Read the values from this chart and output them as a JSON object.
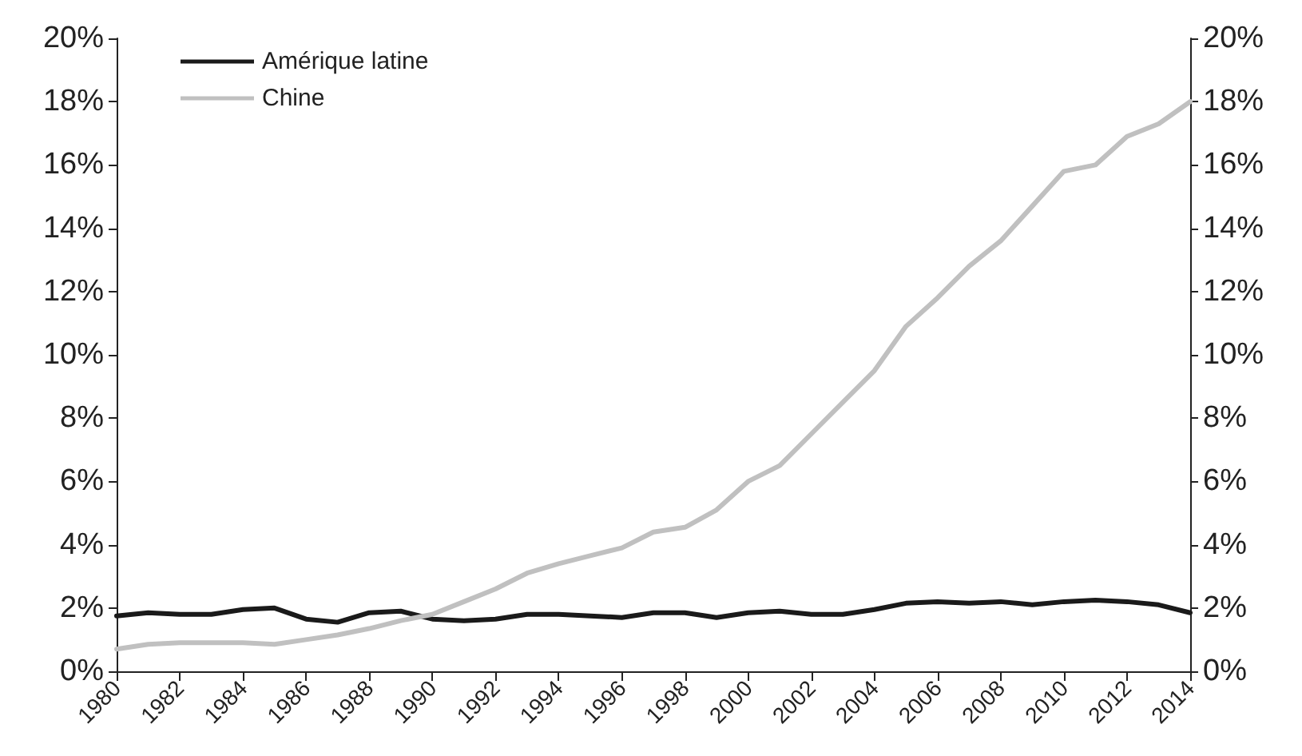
{
  "chart_data": {
    "type": "line",
    "x": [
      1980,
      1981,
      1982,
      1983,
      1984,
      1985,
      1986,
      1987,
      1988,
      1989,
      1990,
      1991,
      1992,
      1993,
      1994,
      1995,
      1996,
      1997,
      1998,
      1999,
      2000,
      2001,
      2002,
      2003,
      2004,
      2005,
      2006,
      2007,
      2008,
      2009,
      2010,
      2011,
      2012,
      2013,
      2014
    ],
    "series": [
      {
        "name": "Amérique latine",
        "color": "#1a1a1a",
        "values": [
          1.75,
          1.85,
          1.8,
          1.8,
          1.95,
          2.0,
          1.65,
          1.55,
          1.85,
          1.9,
          1.65,
          1.6,
          1.65,
          1.8,
          1.8,
          1.75,
          1.7,
          1.85,
          1.85,
          1.7,
          1.85,
          1.9,
          1.8,
          1.8,
          1.95,
          2.15,
          2.2,
          2.15,
          2.2,
          2.1,
          2.2,
          2.25,
          2.2,
          2.1,
          1.85
        ]
      },
      {
        "name": "Chine",
        "color": "#c0c0c0",
        "values": [
          0.7,
          0.85,
          0.9,
          0.9,
          0.9,
          0.85,
          1.0,
          1.15,
          1.35,
          1.6,
          1.8,
          2.2,
          2.6,
          3.1,
          3.4,
          3.65,
          3.9,
          4.4,
          4.55,
          5.1,
          6.0,
          6.5,
          7.5,
          8.5,
          9.5,
          10.9,
          11.8,
          12.8,
          13.6,
          14.7,
          15.8,
          16.0,
          16.9,
          17.3,
          18.0
        ]
      }
    ],
    "xlim": [
      1980,
      2014
    ],
    "xticks": [
      1980,
      1982,
      1984,
      1986,
      1988,
      1990,
      1992,
      1994,
      1996,
      1998,
      2000,
      2002,
      2004,
      2006,
      2008,
      2010,
      2012,
      2014
    ],
    "ylim": [
      0,
      20
    ],
    "yticks": [
      {
        "value": 0,
        "label": "0%"
      },
      {
        "value": 2,
        "label": "2%"
      },
      {
        "value": 4,
        "label": "4%"
      },
      {
        "value": 6,
        "label": "6%"
      },
      {
        "value": 8,
        "label": "8%"
      },
      {
        "value": 10,
        "label": "10%"
      },
      {
        "value": 12,
        "label": "12%"
      },
      {
        "value": 14,
        "label": "14%"
      },
      {
        "value": 16,
        "label": "16%"
      },
      {
        "value": 18,
        "label": "18%"
      },
      {
        "value": 20,
        "label": "20%"
      }
    ],
    "y2lim": [
      0,
      20
    ],
    "y2ticks": [
      {
        "value": 0,
        "label": "0%"
      },
      {
        "value": 2,
        "label": "2%"
      },
      {
        "value": 4,
        "label": "4%"
      },
      {
        "value": 6,
        "label": "6%"
      },
      {
        "value": 8,
        "label": "8%"
      },
      {
        "value": 10,
        "label": "10%"
      },
      {
        "value": 12,
        "label": "12%"
      },
      {
        "value": 14,
        "label": "14%"
      },
      {
        "value": 16,
        "label": "16%"
      },
      {
        "value": 18,
        "label": "18%"
      },
      {
        "value": 20,
        "label": "20%"
      }
    ],
    "grid": false,
    "legend": "top left",
    "marker": "none",
    "line_style": "solid"
  }
}
